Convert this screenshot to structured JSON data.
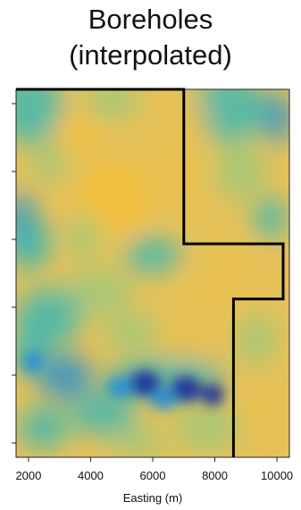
{
  "chart_data": {
    "type": "heatmap",
    "title_lines": [
      "Boreholes",
      "(interpolated)"
    ],
    "xlabel": "Easting (m)",
    "ylabel": "",
    "xlim": [
      1600,
      10400
    ],
    "x_ticks": [
      2000,
      4000,
      6000,
      8000,
      10000
    ],
    "x_tick_labels": [
      "2000",
      "4000",
      "6000",
      "8000",
      "10000"
    ],
    "y_ticks_count": 6,
    "y_tick_labels": [],
    "grid": false,
    "legend": "none",
    "colormap": [
      "#1a2e9c",
      "#2a8fd0",
      "#3fb7b0",
      "#9fc87a",
      "#e9c04c",
      "#f6c13a"
    ],
    "boundary_outline": [
      [
        1600,
        0.0
      ],
      [
        7000,
        0.0
      ],
      [
        7000,
        0.42
      ],
      [
        10200,
        0.42
      ],
      [
        10200,
        0.57
      ],
      [
        8600,
        0.57
      ],
      [
        8600,
        1.0
      ]
    ],
    "low_value_zones": [
      {
        "label": "",
        "x": 6000,
        "y": 0.83
      },
      {
        "label": "",
        "x": 7000,
        "y": 0.84
      }
    ]
  }
}
